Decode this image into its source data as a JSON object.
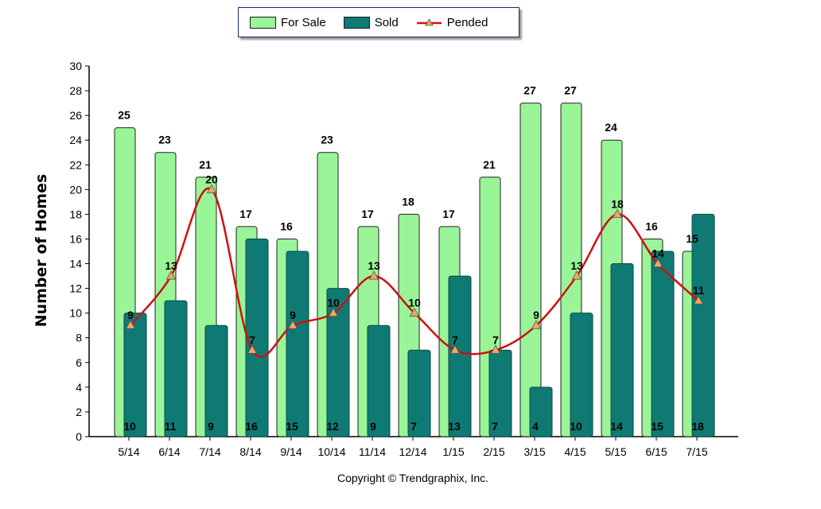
{
  "legend": {
    "for_sale": "For Sale",
    "sold": "Sold",
    "pended": "Pended"
  },
  "colors": {
    "for_sale": "#99f597",
    "sold": "#0f7a74",
    "pended": "#cc1111",
    "marker": "#f0a860"
  },
  "footer": {
    "copyright": "Copyright © Trendgraphix, Inc."
  },
  "chart_data": {
    "type": "bar",
    "categories": [
      "5/14",
      "6/14",
      "7/14",
      "8/14",
      "9/14",
      "10/14",
      "11/14",
      "12/14",
      "1/15",
      "2/15",
      "3/15",
      "4/15",
      "5/15",
      "6/15",
      "7/15"
    ],
    "series": [
      {
        "name": "For Sale",
        "type": "bar",
        "values": [
          25,
          23,
          21,
          17,
          16,
          23,
          17,
          18,
          17,
          21,
          27,
          27,
          24,
          16,
          15
        ]
      },
      {
        "name": "Sold",
        "type": "bar",
        "values": [
          10,
          11,
          9,
          16,
          15,
          12,
          9,
          7,
          13,
          7,
          4,
          10,
          14,
          15,
          18
        ]
      },
      {
        "name": "Pended",
        "type": "line",
        "values": [
          9,
          13,
          20,
          7,
          9,
          10,
          13,
          10,
          7,
          7,
          9,
          13,
          18,
          14,
          11
        ]
      }
    ],
    "ylabel": "Number of Homes",
    "xlabel": "",
    "ylim": [
      0,
      30
    ],
    "yticks": [
      0,
      2,
      4,
      6,
      8,
      10,
      12,
      14,
      16,
      18,
      20,
      22,
      24,
      26,
      28,
      30
    ],
    "legend_position": "top-center",
    "grid": false
  }
}
